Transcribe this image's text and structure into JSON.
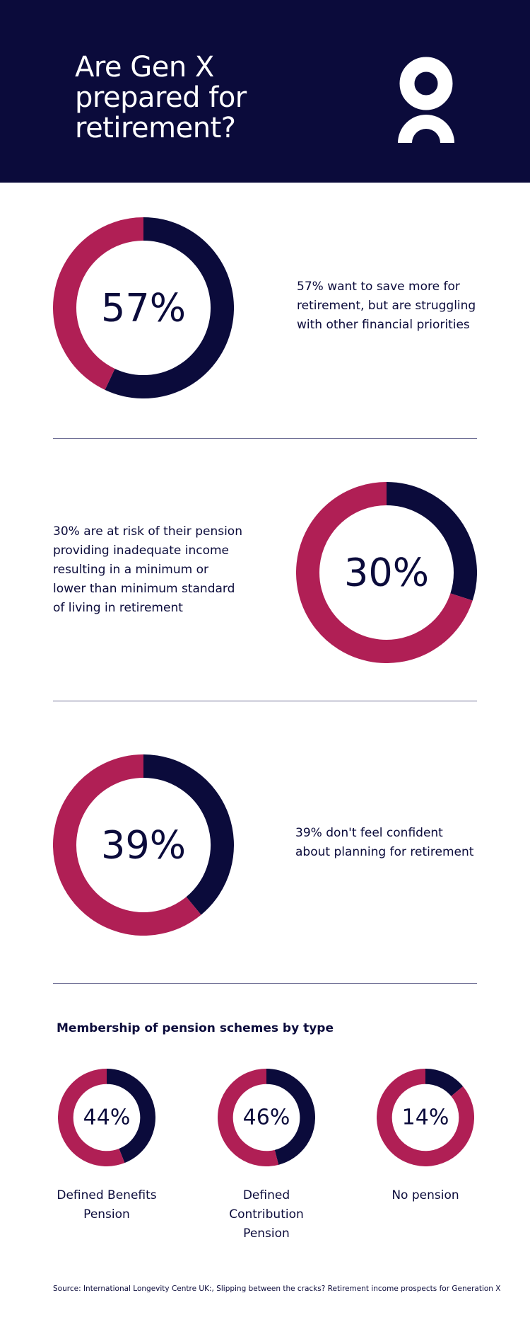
{
  "header": {
    "title": "Are Gen X prepared for retirement?",
    "logo_icon": "oo-logo-icon"
  },
  "colors": {
    "navy": "#0b0b3b",
    "crimson": "#b01f55",
    "white": "#ffffff"
  },
  "stats": [
    {
      "percent": 57,
      "label": "57%",
      "description": "57% want to save more for retirement, but are struggling with other financial priorities"
    },
    {
      "percent": 30,
      "label": "30%",
      "description": "30% are at risk of their pension providing inadequate income resulting in a minimum or lower than minimum standard of living in retirement"
    },
    {
      "percent": 39,
      "label": "39%",
      "description": "39% don't feel confident about planning for retirement"
    }
  ],
  "pension_section": {
    "title": "Membership of pension schemes by type",
    "items": [
      {
        "percent": 44,
        "label": "44%",
        "name": "Defined Benefits Pension"
      },
      {
        "percent": 46,
        "label": "46%",
        "name": "Defined Contribution Pension"
      },
      {
        "percent": 14,
        "label": "14%",
        "name": "No pension"
      }
    ]
  },
  "chart_data": [
    {
      "type": "pie",
      "categories": [
        "",
        ""
      ],
      "values": [
        57,
        43
      ]
    },
    {
      "type": "pie",
      "categories": [
        "",
        ""
      ],
      "values": [
        30,
        70
      ]
    },
    {
      "type": "pie",
      "categories": [
        "",
        ""
      ],
      "values": [
        39,
        61
      ]
    },
    {
      "type": "pie",
      "title": "Membership of pension schemes by type",
      "categories": [
        "Defined Benefits Pension",
        ""
      ],
      "values": [
        44,
        56
      ]
    },
    {
      "type": "pie",
      "title": "Membership of pension schemes by type",
      "categories": [
        "Defined Contribution Pension",
        ""
      ],
      "values": [
        46,
        54
      ]
    },
    {
      "type": "pie",
      "title": "Membership of pension schemes by type",
      "categories": [
        "No pension",
        ""
      ],
      "values": [
        14,
        86
      ]
    }
  ],
  "source": "Source: International Longevity Centre UK:, Slipping between the cracks? Retirement income prospects for Generation X"
}
